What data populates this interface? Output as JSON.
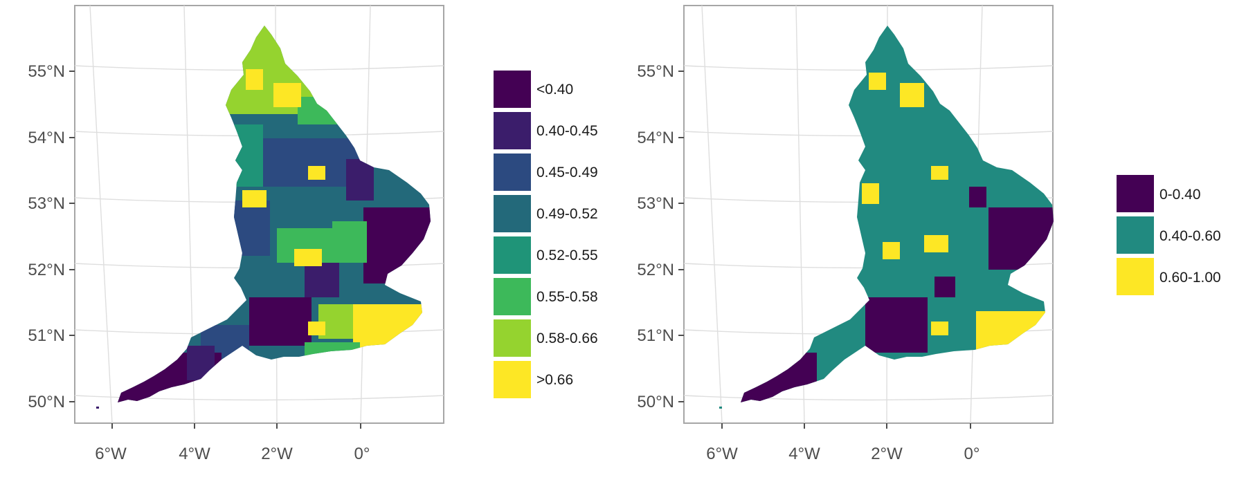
{
  "maps": [
    {
      "id": "left",
      "lat_labels": [
        "55°N",
        "54°N",
        "53°N",
        "52°N",
        "51°N",
        "50°N"
      ],
      "lon_labels": [
        "6°W",
        "4°W",
        "2°W",
        "0°"
      ],
      "legend": [
        {
          "label": "<0.40",
          "color": "#440154"
        },
        {
          "label": "0.40-0.45",
          "color": "#3b1d6b"
        },
        {
          "label": "0.45-0.49",
          "color": "#2c4a80"
        },
        {
          "label": "0.49-0.52",
          "color": "#23697a"
        },
        {
          "label": "0.52-0.55",
          "color": "#1f9478"
        },
        {
          "label": "0.55-0.58",
          "color": "#3db95a"
        },
        {
          "label": "0.58-0.66",
          "color": "#95d32f"
        },
        {
          "label": ">0.66",
          "color": "#fde725"
        }
      ]
    },
    {
      "id": "right",
      "lat_labels": [
        "55°N",
        "54°N",
        "53°N",
        "52°N",
        "51°N",
        "50°N"
      ],
      "lon_labels": [
        "6°W",
        "4°W",
        "2°W",
        "0°"
      ],
      "legend": [
        {
          "label": "0-0.40",
          "color": "#440154"
        },
        {
          "label": "0.40-0.60",
          "color": "#218a80"
        },
        {
          "label": "0.60-1.00",
          "color": "#fde725"
        }
      ]
    }
  ]
}
